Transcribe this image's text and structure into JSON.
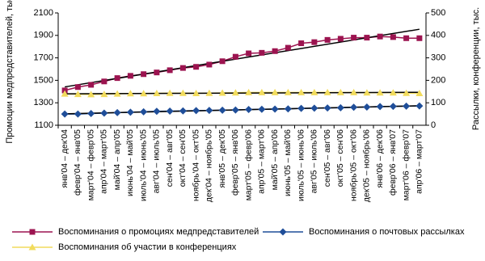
{
  "chart_data": {
    "type": "line",
    "y_label": "Промоции медпредставителей, тыс.",
    "y2_label": "Рассылки, конференции, тыс.",
    "categories": [
      "янв'04 – дек'04",
      "февр'04 – янв'05",
      "март'04 – февр'05",
      "апр'04 – март'05",
      "май'04 – апр'05",
      "июнь'04 – май'05",
      "июль'04 – июнь'05",
      "авг'04 – июль'05",
      "сен'04 – авг'05",
      "окт'04 – сен'05",
      "ноябрь'04 – окт'05",
      "дек'04 – ноябрь'05",
      "янв'05 – дек'05",
      "февр'05 – янв'06",
      "март'05 – февр'06",
      "апр'05 – март'06",
      "май'05 – апр'06",
      "июнь'05 – май'06",
      "июль'05 – июнь'06",
      "авг'05 – июль'06",
      "сен'05 – авг'06",
      "окт'05 – сен'06",
      "ноябрь'05 – окт'06",
      "дек'05 – ноябрь'06",
      "янв'06 – дек'06",
      "февр'06 – янв'07",
      "март'06 – февр'07",
      "апр'06 – март'07"
    ],
    "series": [
      {
        "name": "Воспоминания о промоциях медпредставителей",
        "color": "#9c1450",
        "marker": "square",
        "values": [
          1410,
          1440,
          1460,
          1490,
          1520,
          1540,
          1555,
          1570,
          1590,
          1610,
          1620,
          1640,
          1670,
          1710,
          1740,
          1745,
          1760,
          1790,
          1830,
          1840,
          1860,
          1870,
          1880,
          1880,
          1890,
          1885,
          1875,
          1875
        ]
      },
      {
        "name": "Воспоминания о почтовых рассылках",
        "color": "#1f4e99",
        "marker": "diamond",
        "axis": "y2",
        "values": [
          50,
          50,
          52,
          54,
          56,
          58,
          60,
          62,
          63,
          64,
          65,
          66,
          67,
          68,
          70,
          71,
          72,
          73,
          75,
          76,
          77,
          78,
          80,
          81,
          83,
          84,
          85,
          86
        ]
      },
      {
        "name": "Воспоминания об участии в конференциях",
        "color": "#f2dc5d",
        "marker": "triangle",
        "axis": "y2",
        "values": [
          140,
          138,
          137,
          138,
          140,
          141,
          141,
          142,
          143,
          143,
          142,
          143,
          144,
          145,
          146,
          146,
          146,
          146,
          146,
          146,
          146,
          146,
          146,
          145,
          145,
          145,
          143,
          142
        ]
      }
    ],
    "ylim": [
      1100,
      2100
    ],
    "yticks": [
      1100,
      1300,
      1500,
      1700,
      1900,
      2100
    ],
    "y2lim": [
      0,
      500
    ],
    "y2ticks": [
      0,
      100,
      200,
      300,
      400,
      500
    ],
    "trendline": true,
    "trendline_color": "#000000"
  }
}
